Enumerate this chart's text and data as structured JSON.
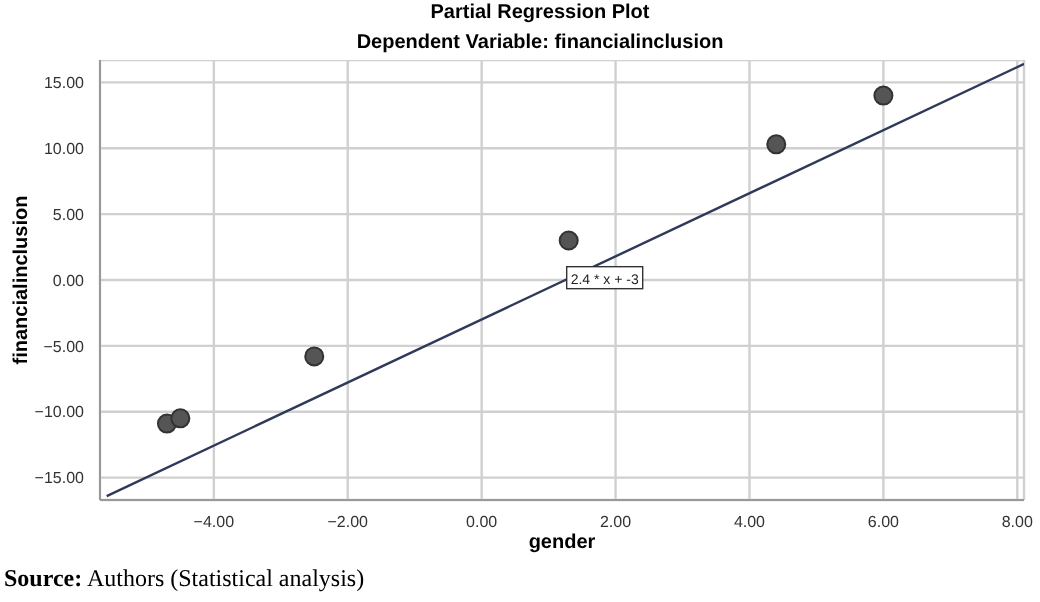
{
  "chart_data": {
    "type": "scatter",
    "title": "Partial Regression Plot",
    "subtitle": "Dependent Variable: financialinclusion",
    "xlabel": "gender",
    "ylabel": "financialinclusion",
    "xlim": [
      -5.7,
      8.1
    ],
    "ylim": [
      -16.7,
      16.7
    ],
    "xticks": [
      {
        "value": -4,
        "label": "−4.00"
      },
      {
        "value": -2,
        "label": "−2.00"
      },
      {
        "value": 0,
        "label": "0.00"
      },
      {
        "value": 2,
        "label": "2.00"
      },
      {
        "value": 4,
        "label": "4.00"
      },
      {
        "value": 6,
        "label": "6.00"
      },
      {
        "value": 8,
        "label": "8.00"
      }
    ],
    "yticks": [
      {
        "value": -15,
        "label": "−15.00"
      },
      {
        "value": -10,
        "label": "−10.00"
      },
      {
        "value": -5,
        "label": "−5.00"
      },
      {
        "value": 0,
        "label": "0.00"
      },
      {
        "value": 5,
        "label": "5.00"
      },
      {
        "value": 10,
        "label": "10.00"
      },
      {
        "value": 15,
        "label": "15.00"
      }
    ],
    "grid": true,
    "series": [
      {
        "color": "#555555",
        "marker": "circle",
        "x": [
          -4.7,
          -4.5,
          -2.5,
          1.3,
          4.4,
          6.0
        ],
        "values": [
          -10.9,
          -10.5,
          -5.8,
          3.0,
          10.3,
          14.0
        ]
      },
      {
        "type": "line",
        "color": "#2f3a5a",
        "x": [
          -5.6,
          8.1
        ],
        "values": [
          -16.4,
          16.4
        ]
      }
    ],
    "annotations": [
      {
        "text": "2.4 * x + -3",
        "x": 1.3,
        "y": 0.1
      },
      "Source: Authors (Statistical analysis)"
    ]
  }
}
